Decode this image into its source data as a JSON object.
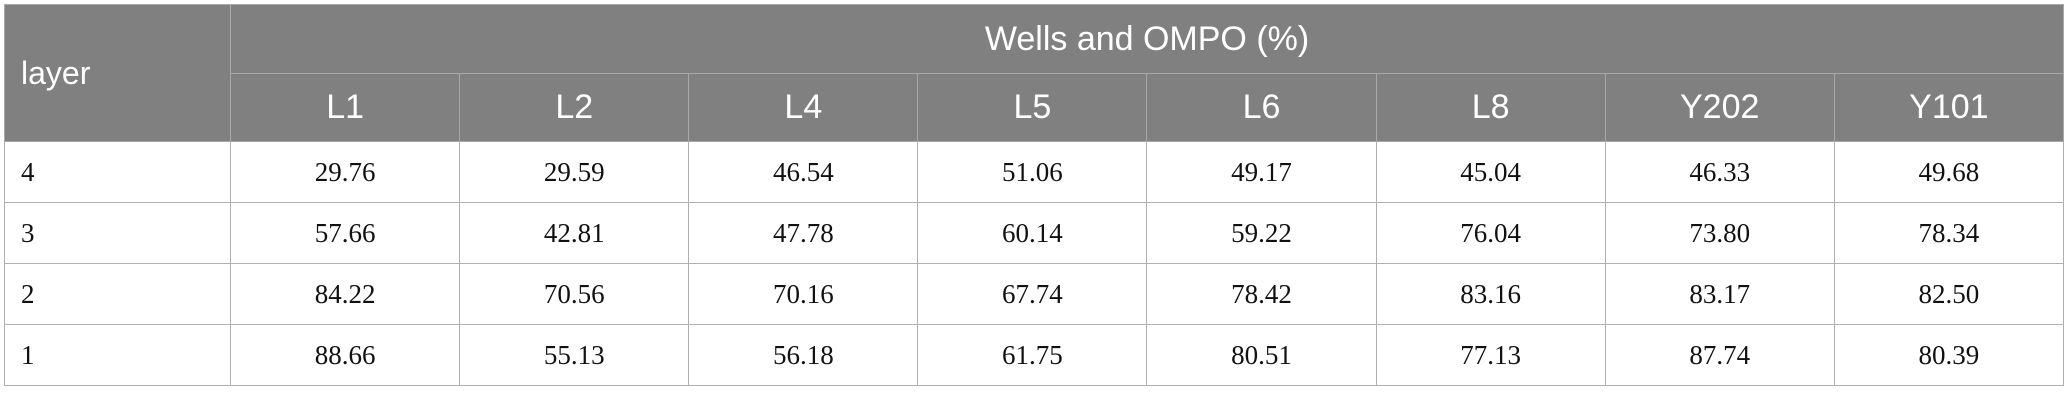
{
  "table": {
    "layer_header": "layer",
    "group_header": "Wells and OMPO (%)",
    "wells": [
      "L1",
      "L2",
      "L4",
      "L5",
      "L6",
      "L8",
      "Y202",
      "Y101"
    ],
    "rows": [
      {
        "layer": "4",
        "values": [
          "29.76",
          "29.59",
          "46.54",
          "51.06",
          "49.17",
          "45.04",
          "46.33",
          "49.68"
        ]
      },
      {
        "layer": "3",
        "values": [
          "57.66",
          "42.81",
          "47.78",
          "60.14",
          "59.22",
          "76.04",
          "73.80",
          "78.34"
        ]
      },
      {
        "layer": "2",
        "values": [
          "84.22",
          "70.56",
          "70.16",
          "67.74",
          "78.42",
          "83.16",
          "83.17",
          "82.50"
        ]
      },
      {
        "layer": "1",
        "values": [
          "88.66",
          "55.13",
          "56.18",
          "61.75",
          "80.51",
          "77.13",
          "87.74",
          "80.39"
        ]
      }
    ]
  },
  "colors": {
    "header_background": "#808080",
    "header_text": "#ffffff",
    "border": "#b0b0b0"
  }
}
